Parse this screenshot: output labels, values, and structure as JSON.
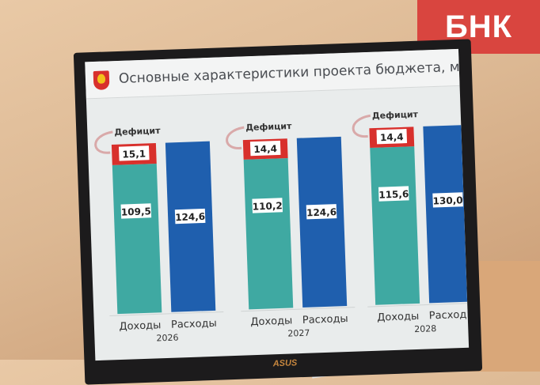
{
  "watermark": "БНК",
  "monitor_brand": "ASUS",
  "chart_data": {
    "type": "bar",
    "title": "Основные характеристики проекта бюджета, млрд рублей",
    "categories": [
      "2026",
      "2027",
      "2028"
    ],
    "bar_labels": [
      "Доходы",
      "Расходы"
    ],
    "deficit_label": "Дефицит",
    "series": [
      {
        "name": "Доходы",
        "values": [
          109.5,
          110.2,
          115.6
        ],
        "color": "#3fa9a2"
      },
      {
        "name": "Дефицит",
        "values": [
          15.1,
          14.4,
          14.4
        ],
        "color": "#d8302c"
      },
      {
        "name": "Расходы",
        "values": [
          124.6,
          124.6,
          130.0
        ],
        "color": "#1f5fae"
      }
    ],
    "value_labels": {
      "income": [
        "109,5",
        "110,2",
        "115,6"
      ],
      "deficit": [
        "15,1",
        "14,4",
        "14,4"
      ],
      "expenses": [
        "124,6",
        "124,6",
        "130,0"
      ]
    },
    "stacked": true,
    "grid": false
  }
}
